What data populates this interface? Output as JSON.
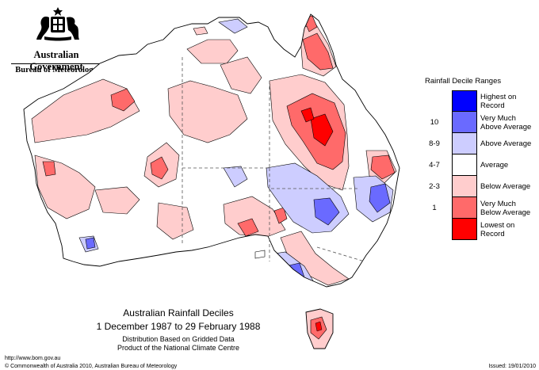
{
  "header": {
    "government": "Australian Government",
    "bureau": "Bureau of Meteorology"
  },
  "legend": {
    "title": "Rainfall Decile Ranges",
    "items": [
      {
        "range": "",
        "label": "Highest on Record",
        "color": "#0000ff"
      },
      {
        "range": "10",
        "label": "Very Much Above Average",
        "color": "#6a6aff"
      },
      {
        "range": "8-9",
        "label": "Above Average",
        "color": "#cdcdff"
      },
      {
        "range": "4-7",
        "label": "Average",
        "color": "#ffffff"
      },
      {
        "range": "2-3",
        "label": "Below Average",
        "color": "#ffcdcd"
      },
      {
        "range": "1",
        "label": "Very Much Below Average",
        "color": "#ff6a6a"
      },
      {
        "range": "",
        "label": "Lowest on Record",
        "color": "#ff0000"
      }
    ]
  },
  "caption": {
    "title": "Australian Rainfall Deciles",
    "period": "1 December 1987 to 29 February 1988",
    "line3": "Distribution Based on Gridded Data",
    "line4": "Product of the National Climate Centre"
  },
  "footer": {
    "url": "http://www.bom.gov.au",
    "copyright": "© Commonwealth of Australia 2010, Australian Bureau of Meteorology",
    "issued": "Issued: 19/01/2010"
  }
}
